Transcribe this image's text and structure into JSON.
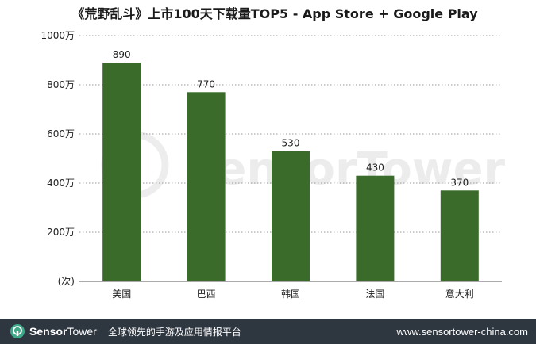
{
  "chart_data": {
    "type": "bar",
    "title": "《荒野乱斗》上市100天下载量TOP5 - App Store + Google Play",
    "categories": [
      "美国",
      "巴西",
      "韩国",
      "法国",
      "意大利"
    ],
    "values": [
      890,
      770,
      530,
      430,
      370
    ],
    "data_labels": [
      "890",
      "770",
      "530",
      "430",
      "370"
    ],
    "y_ticks": [
      {
        "value": 0,
        "label": "(次)"
      },
      {
        "value": 200,
        "label": "200万"
      },
      {
        "value": 400,
        "label": "400万"
      },
      {
        "value": 600,
        "label": "600万"
      },
      {
        "value": 800,
        "label": "800万"
      },
      {
        "value": 1000,
        "label": "1000万"
      }
    ],
    "ylim": [
      0,
      1000
    ],
    "grid": true,
    "bar_color": "#3a6b2a",
    "xlabel": "",
    "ylabel": ""
  },
  "watermark": {
    "text": "SensorTower"
  },
  "footer": {
    "brand_first": "Sensor",
    "brand_second": "Tower",
    "tagline": "全球领先的手游及应用情报平台",
    "url": "www.sensortower-china.com",
    "background": "#2e3640",
    "logo_color": "#3fa98a"
  }
}
